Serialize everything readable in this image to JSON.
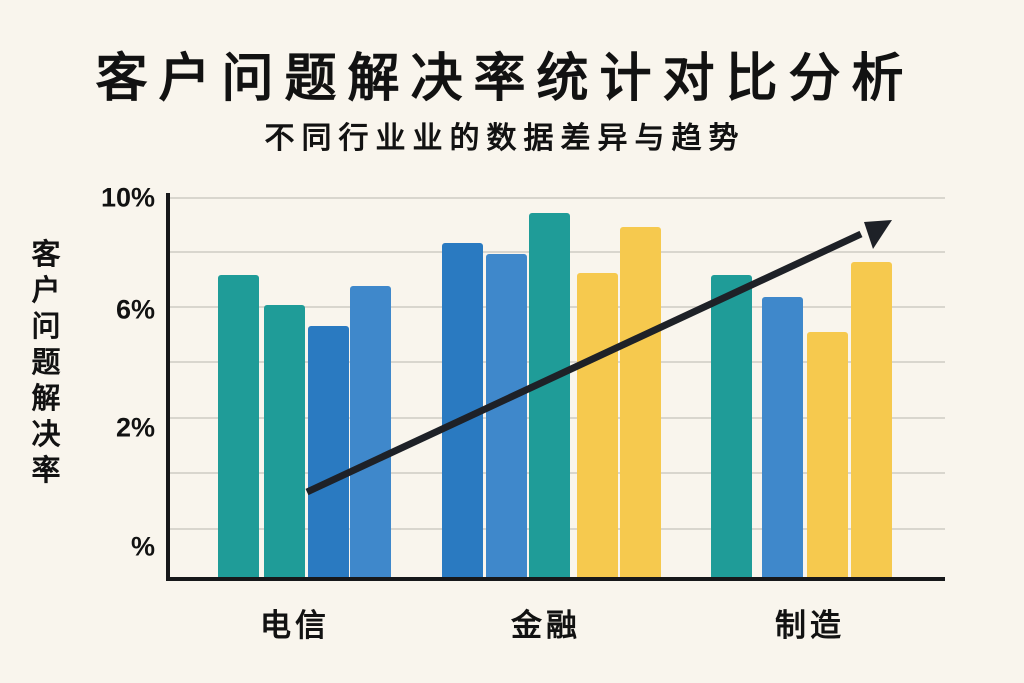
{
  "title": "客户问题解决率统计对比分析",
  "subtitle": "不同行业业的数据差异与趋势",
  "colors": {
    "background": "#f9f5ed",
    "text": "#121212",
    "axis": "#17181a",
    "grid": "#d9d6ce",
    "arrow": "#1e2127",
    "teal": "#1f9c98",
    "blue": "#2a7ac1",
    "light_blue": "#3f88cb",
    "yellow": "#f6c94e"
  },
  "chart_data": {
    "type": "bar",
    "title": "客户问题解决率统计对比分析",
    "subtitle": "不同行业业的数据差异与趋势",
    "ylabel": "客户问题解决率",
    "xlabel": "",
    "y_ticks": [
      "10%",
      "6%",
      "2%",
      "%"
    ],
    "ylim": [
      0,
      10
    ],
    "grid": true,
    "legend": false,
    "categories": [
      "电信",
      "金融",
      "制造"
    ],
    "groups": [
      {
        "category": "电信",
        "bars": [
          {
            "color": "teal",
            "value": 7.2
          },
          {
            "color": "teal",
            "value": 6.1
          },
          {
            "color": "blue",
            "value": 5.3
          },
          {
            "color": "light_blue",
            "value": 6.8
          }
        ]
      },
      {
        "category": "金融",
        "bars": [
          {
            "color": "blue",
            "value": 8.4
          },
          {
            "color": "light_blue",
            "value": 8.0
          },
          {
            "color": "teal",
            "value": 9.5
          },
          {
            "color": "yellow",
            "value": 7.3
          },
          {
            "color": "yellow",
            "value": 9.0
          }
        ]
      },
      {
        "category": "制造",
        "bars": [
          {
            "color": "teal",
            "value": 7.2
          },
          {
            "color": "light_blue",
            "value": 6.4
          },
          {
            "color": "yellow",
            "value": 5.1
          },
          {
            "color": "yellow",
            "value": 7.7
          }
        ]
      }
    ],
    "annotations": [
      {
        "type": "trend-arrow",
        "direction": "up"
      }
    ]
  }
}
